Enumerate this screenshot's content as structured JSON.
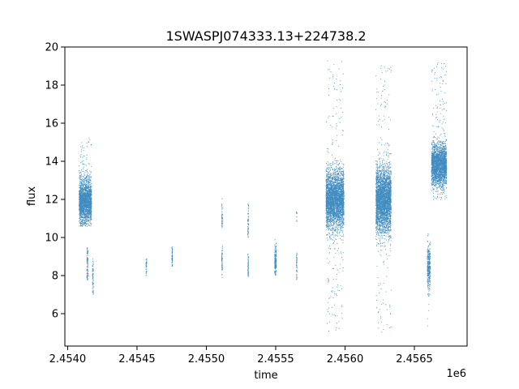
{
  "chart_data": {
    "type": "scatter",
    "title": "1SWASPJ074333.13+224738.2",
    "xlabel": "time",
    "ylabel": "flux",
    "x_offset_label": "1e6",
    "xlim": [
      2453980,
      2456880
    ],
    "ylim": [
      4.3,
      20
    ],
    "x_ticks": [
      2454000,
      2454500,
      2455000,
      2455500,
      2456000,
      2456500
    ],
    "x_tick_labels": [
      "2.4540",
      "2.4545",
      "2.4550",
      "2.4555",
      "2.4560",
      "2.4565"
    ],
    "y_ticks": [
      6,
      8,
      10,
      12,
      14,
      16,
      18,
      20
    ],
    "y_tick_labels": [
      "6",
      "8",
      "10",
      "12",
      "14",
      "16",
      "18",
      "20"
    ],
    "grid": false,
    "point_color": "#1f77b4",
    "clusters": [
      {
        "x_start": 2454080,
        "x_end": 2454170,
        "y_center": 11.9,
        "y_spread": 0.55,
        "outlier_low": 10.6,
        "outlier_high": 15.3,
        "density": 2200
      },
      {
        "x_start": 2454135,
        "x_end": 2454145,
        "y_center": 8.6,
        "y_spread": 0.55,
        "outlier_low": 7.8,
        "outlier_high": 9.5,
        "density": 100
      },
      {
        "x_start": 2454176,
        "x_end": 2454184,
        "y_center": 8.0,
        "y_spread": 0.5,
        "outlier_low": 6.9,
        "outlier_high": 8.9,
        "density": 70
      },
      {
        "x_start": 2454562,
        "x_end": 2454568,
        "y_center": 8.5,
        "y_spread": 0.25,
        "outlier_low": 8.0,
        "outlier_high": 9.0,
        "density": 40
      },
      {
        "x_start": 2454748,
        "x_end": 2454754,
        "y_center": 9.1,
        "y_spread": 0.35,
        "outlier_low": 8.5,
        "outlier_high": 9.7,
        "density": 60
      },
      {
        "x_start": 2455108,
        "x_end": 2455114,
        "y_center": 11.1,
        "y_spread": 0.4,
        "outlier_low": 10.5,
        "outlier_high": 12.1,
        "density": 50
      },
      {
        "x_start": 2455108,
        "x_end": 2455114,
        "y_center": 8.8,
        "y_spread": 0.4,
        "outlier_low": 7.9,
        "outlier_high": 9.6,
        "density": 60
      },
      {
        "x_start": 2455296,
        "x_end": 2455302,
        "y_center": 10.8,
        "y_spread": 0.5,
        "outlier_low": 10.0,
        "outlier_high": 11.8,
        "density": 60
      },
      {
        "x_start": 2455296,
        "x_end": 2455302,
        "y_center": 8.5,
        "y_spread": 0.35,
        "outlier_low": 7.8,
        "outlier_high": 9.2,
        "density": 60
      },
      {
        "x_start": 2455490,
        "x_end": 2455502,
        "y_center": 8.8,
        "y_spread": 0.45,
        "outlier_low": 8.0,
        "outlier_high": 10.0,
        "density": 180
      },
      {
        "x_start": 2455646,
        "x_end": 2455652,
        "y_center": 8.6,
        "y_spread": 0.4,
        "outlier_low": 7.8,
        "outlier_high": 9.4,
        "density": 50
      },
      {
        "x_start": 2455646,
        "x_end": 2455652,
        "y_center": 11.1,
        "y_spread": 0.2,
        "outlier_low": 10.8,
        "outlier_high": 11.4,
        "density": 10
      },
      {
        "x_start": 2455860,
        "x_end": 2455990,
        "y_center": 12.0,
        "y_spread": 0.75,
        "outlier_low": 5.0,
        "outlier_high": 19.3,
        "density": 3500
      },
      {
        "x_start": 2456220,
        "x_end": 2456330,
        "y_center": 12.0,
        "y_spread": 0.85,
        "outlier_low": 5.0,
        "outlier_high": 19.2,
        "density": 3500
      },
      {
        "x_start": 2456590,
        "x_end": 2456612,
        "y_center": 8.5,
        "y_spread": 0.55,
        "outlier_low": 5.3,
        "outlier_high": 10.3,
        "density": 350
      },
      {
        "x_start": 2456620,
        "x_end": 2456730,
        "y_center": 13.8,
        "y_spread": 0.55,
        "outlier_low": 12.0,
        "outlier_high": 19.2,
        "density": 2500
      }
    ]
  }
}
